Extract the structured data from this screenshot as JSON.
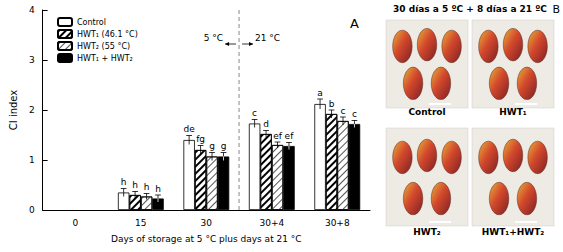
{
  "chart_data": {
    "type": "bar",
    "title": "A",
    "x_label": "Days of storage at 5 °C plus days at 21 °C",
    "y_label": "CI index",
    "categories": [
      "0",
      "15",
      "30",
      "30+4",
      "30+8"
    ],
    "series": [
      {
        "name": "Control",
        "color": "#ffffff",
        "values": [
          null,
          0.35,
          1.4,
          1.73,
          2.12
        ],
        "errors": [
          null,
          0.08,
          0.09,
          0.08,
          0.1
        ],
        "letters": [
          null,
          "h",
          "de",
          "c",
          "a"
        ]
      },
      {
        "name": "HWT₁ (46.1 °C)",
        "color": "#ffffff",
        "values": [
          null,
          0.3,
          1.2,
          1.52,
          1.92
        ],
        "errors": [
          null,
          0.07,
          0.09,
          0.07,
          0.08
        ],
        "letters": [
          null,
          "h",
          "fg",
          "d",
          "b"
        ]
      },
      {
        "name": "HWT₂ (55 °C)",
        "color": "#ffffff",
        "values": [
          null,
          0.27,
          1.07,
          1.3,
          1.78
        ],
        "errors": [
          null,
          0.06,
          0.08,
          0.06,
          0.08
        ],
        "letters": [
          null,
          "h",
          "g",
          "ef",
          "c"
        ]
      },
      {
        "name": "HWT₁ + HWT₂",
        "color": "#000000",
        "values": [
          null,
          0.23,
          1.07,
          1.28,
          1.72
        ],
        "errors": [
          null,
          0.07,
          0.08,
          0.07,
          0.07
        ],
        "letters": [
          null,
          "h",
          "g",
          "ef",
          "c"
        ]
      }
    ],
    "ylim": [
      0,
      4
    ],
    "yticks": [
      0,
      1,
      2,
      3,
      4
    ],
    "legend": "upper left",
    "annotations": [
      {
        "text": "5 °C",
        "category": "30"
      },
      {
        "text": "21 °C",
        "category": "30+4"
      }
    ]
  },
  "photo_panel": {
    "label": "B",
    "title": "30 días a 5 ºC + 8 días a 21 ºC",
    "captions": [
      "Control",
      "HWT₁",
      "HWT₂",
      "HWT₁+HWT₂"
    ]
  }
}
